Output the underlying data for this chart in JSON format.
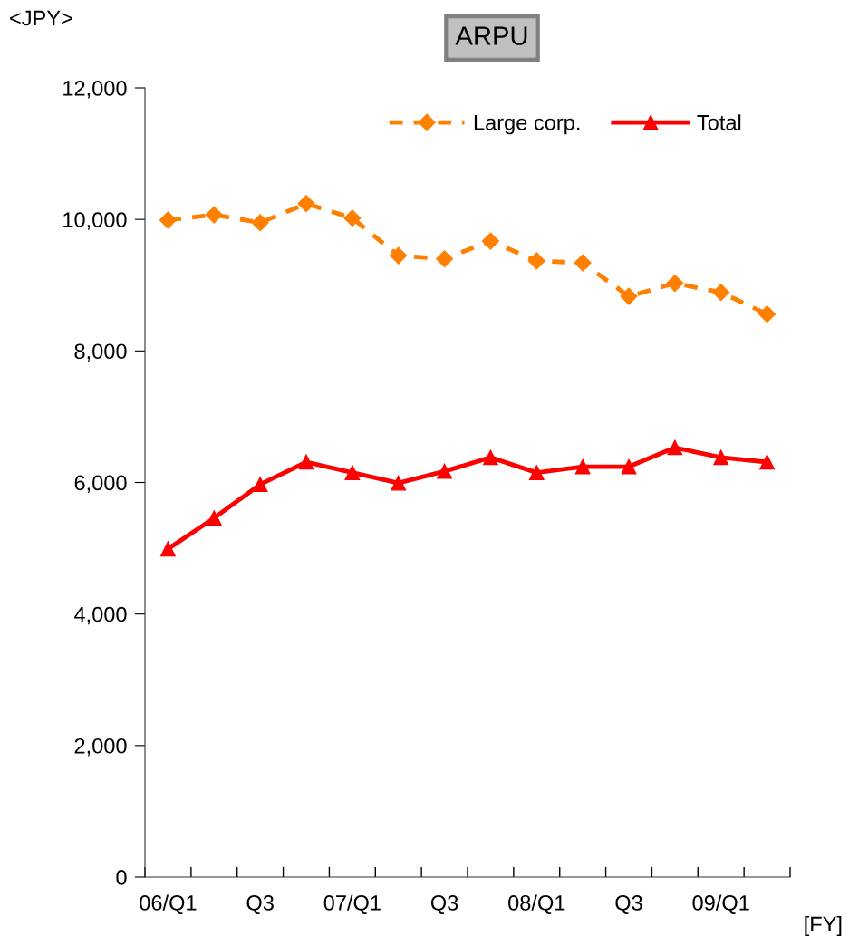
{
  "chart_data": {
    "type": "line",
    "title": "ARPU",
    "ylabel": "<JPY>",
    "xlabel": "[FY]",
    "categories": [
      "06/Q1",
      null,
      "Q3",
      null,
      "07/Q1",
      null,
      "Q3",
      null,
      "08/Q1",
      null,
      "Q3",
      null,
      "09/Q1",
      null
    ],
    "series": [
      {
        "name": "Large corp.",
        "color": "#ff8000",
        "marker": "diamond",
        "line_style": "dashed",
        "values": [
          9990,
          10070,
          9950,
          10240,
          10020,
          9450,
          9400,
          9670,
          9370,
          9340,
          8830,
          9030,
          8890,
          8560
        ]
      },
      {
        "name": "Total",
        "color": "#ff0000",
        "marker": "triangle",
        "line_style": "solid",
        "values": [
          4990,
          5460,
          5970,
          6310,
          6150,
          5990,
          6170,
          6380,
          6150,
          6240,
          6240,
          6530,
          6380,
          6310
        ]
      }
    ],
    "ylim": [
      0,
      12000
    ],
    "yticks": [
      {
        "value": 0,
        "label": "0"
      },
      {
        "value": 2000,
        "label": "2,000"
      },
      {
        "value": 4000,
        "label": "4,000"
      },
      {
        "value": 6000,
        "label": "6,000"
      },
      {
        "value": 8000,
        "label": "8,000"
      },
      {
        "value": 10000,
        "label": "10,000"
      },
      {
        "value": 12000,
        "label": "12,000"
      }
    ],
    "grid": false,
    "legend": "top right"
  }
}
